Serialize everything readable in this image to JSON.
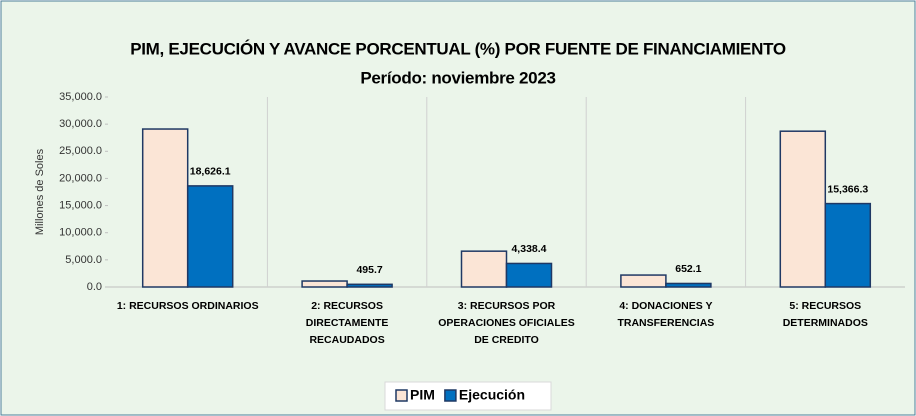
{
  "chart_data": {
    "type": "bar",
    "title": "PIM,  EJECUCIÓN Y AVANCE PORCENTUAL (%) POR FUENTE DE FINANCIAMIENTO",
    "subtitle": "Período: noviembre 2023",
    "y_label": "Millones de Soles",
    "categories": [
      "1: RECURSOS ORDINARIOS",
      "2: RECURSOS\nDIRECTAMENTE\nRECAUDADOS",
      "3: RECURSOS POR\nOPERACIONES OFICIALES\nDE CREDITO",
      "4: DONACIONES Y\nTRANSFERENCIAS",
      "5: RECURSOS\nDETERMINADOS"
    ],
    "series": [
      {
        "name": "PIM",
        "color": "#fbe5d6",
        "values": [
          29100,
          1100,
          6600,
          2200,
          28700
        ]
      },
      {
        "name": "Ejecución",
        "color": "#0070c0",
        "values": [
          18626.1,
          495.7,
          4338.4,
          652.1,
          15366.3
        ],
        "value_labels": [
          "18,626.1",
          "495.7",
          "4,338.4",
          "652.1",
          "15,366.3"
        ]
      }
    ],
    "ylim": [
      0,
      35000
    ],
    "yticks": [
      {
        "value": 0,
        "label": "0.0"
      },
      {
        "value": 5000,
        "label": "5,000.0"
      },
      {
        "value": 10000,
        "label": "10,000.0"
      },
      {
        "value": 15000,
        "label": "15,000.0"
      },
      {
        "value": 20000,
        "label": "20,000.0"
      },
      {
        "value": 25000,
        "label": "25,000.0"
      },
      {
        "value": 30000,
        "label": "30,000.0"
      },
      {
        "value": 35000,
        "label": "35,000.0"
      }
    ],
    "legend": "bottom"
  }
}
